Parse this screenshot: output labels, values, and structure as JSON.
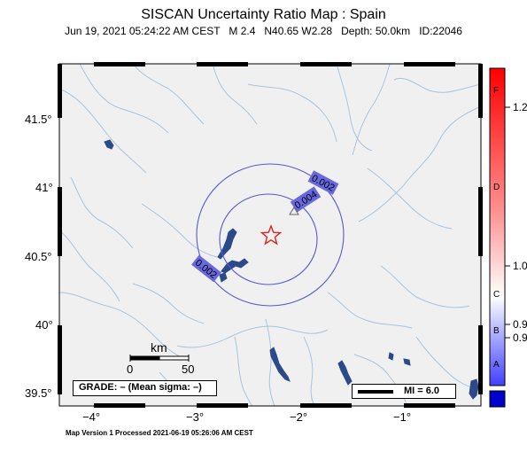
{
  "title": "SISCAN Uncertainty Ratio Map : Spain",
  "subtitle": {
    "date": "Jun 19, 2021 05:24:22 AM CEST",
    "magnitude": "M 2.4",
    "location": "N40.65 W2.28",
    "depth": "Depth: 50.0km",
    "id": "ID:22046"
  },
  "axes": {
    "lon_ticks": [
      "−4°",
      "−3°",
      "−2°",
      "−1°"
    ],
    "lat_ticks": [
      "41.5°",
      "41°",
      "40.5°",
      "40°",
      "39.5°"
    ]
  },
  "contours": [
    {
      "label": "0.002",
      "value": 0.002
    },
    {
      "label": "0.004",
      "value": 0.004
    },
    {
      "label": "0.002",
      "value": 0.002
    }
  ],
  "epicenter": {
    "symbol": "star",
    "color": "#e02020"
  },
  "station": {
    "symbol": "triangle"
  },
  "scale_bar": {
    "title": "km",
    "labels": [
      "0",
      "50"
    ]
  },
  "grade_box": "GRADE: – (Mean sigma: –)",
  "legend_mi": "MI = 6.0",
  "colorbar": {
    "tick_labels": [
      "1.2",
      "1.0",
      "0.9",
      "0.9"
    ],
    "grade_letters": [
      "F",
      "D",
      "C",
      "B",
      "A"
    ],
    "colors": {
      "top": "#ff0000",
      "middle": "#ffffff",
      "bottom": "#0000cc"
    }
  },
  "footer": "Map Version 1 Processed 2021-06-19 05:26:06 AM CEST",
  "colors": {
    "map_bg": "#f0f0f0",
    "rivers": "#a8c4dc",
    "contour": "#5858d0",
    "contour_label_bg": "#6868e0",
    "water": "#2c4a8a"
  }
}
